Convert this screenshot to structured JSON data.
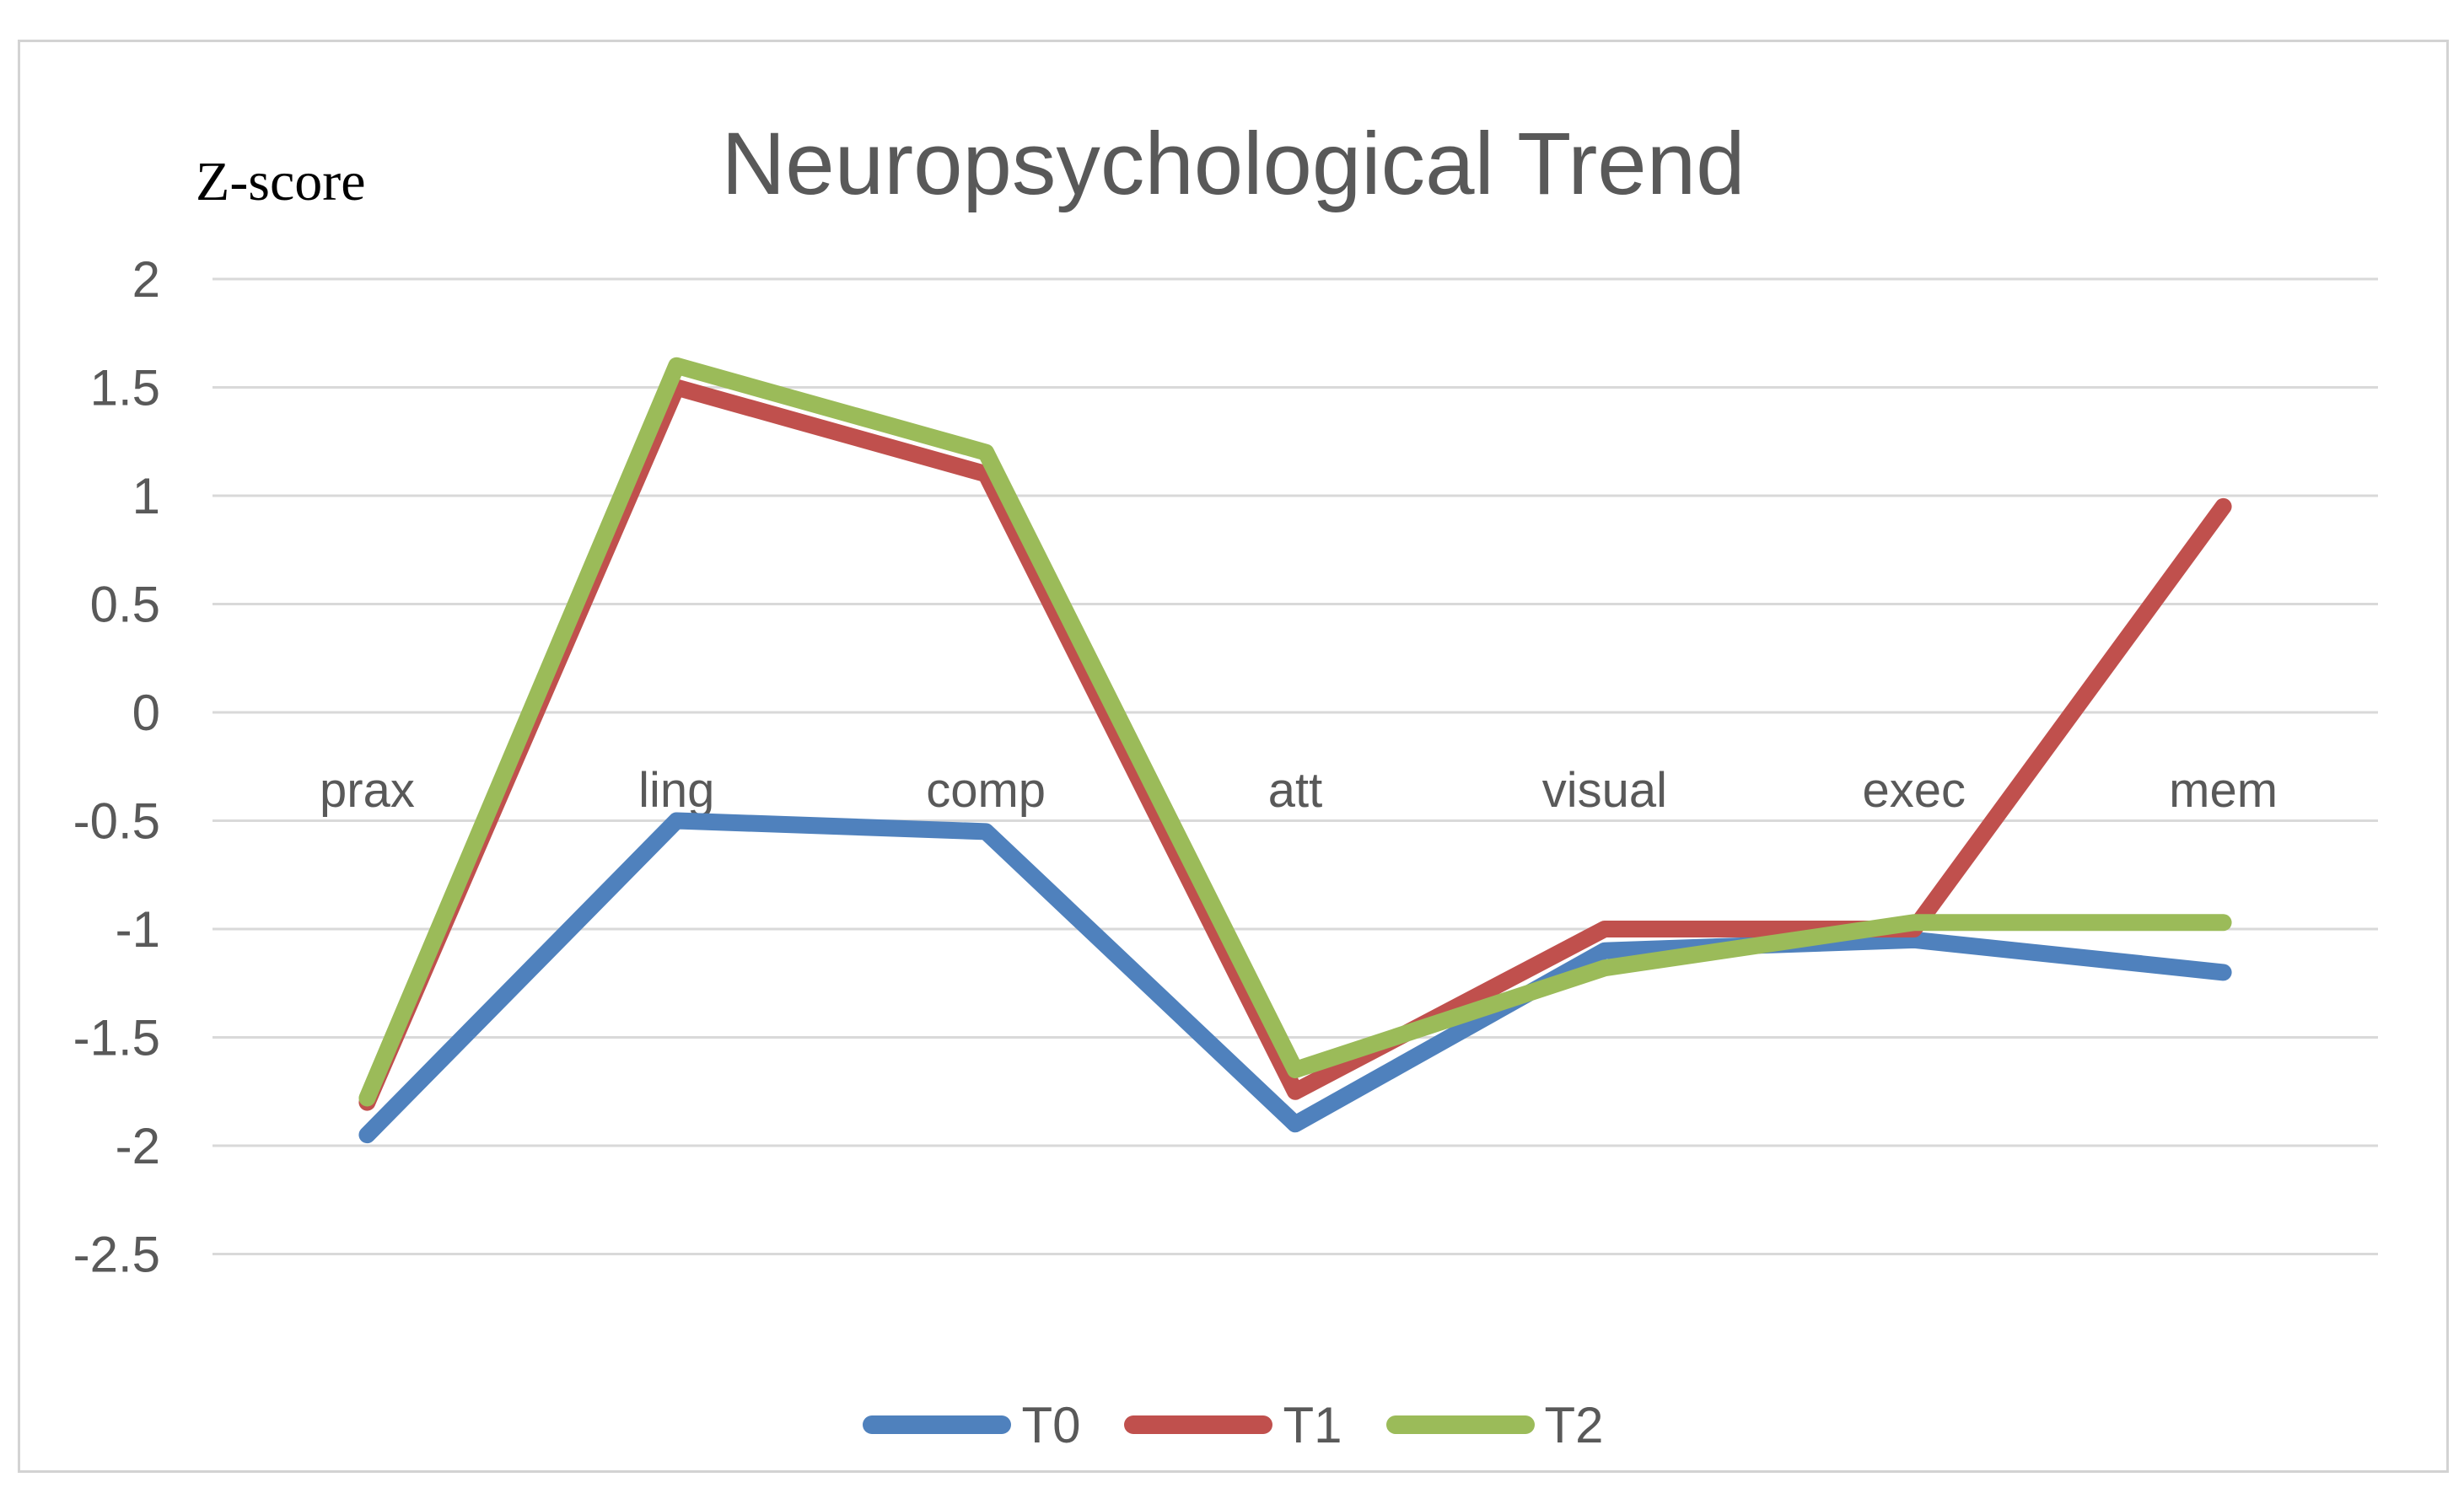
{
  "chart_data": {
    "type": "line",
    "title": "Neuropsychological Trend",
    "ylabel": "Z-score",
    "xlabel": "",
    "categories": [
      "prax",
      "ling",
      "comp",
      "att",
      "visual",
      "exec",
      "mem"
    ],
    "series": [
      {
        "name": "T0",
        "color": "#4F81BD",
        "values": [
          -1.95,
          -0.5,
          -0.55,
          -1.9,
          -1.1,
          -1.05,
          -1.2
        ]
      },
      {
        "name": "T1",
        "color": "#C0504D",
        "values": [
          -1.8,
          1.5,
          1.1,
          -1.75,
          -1.0,
          -1.0,
          0.95
        ]
      },
      {
        "name": "T2",
        "color": "#9BBB59",
        "values": [
          -1.78,
          1.6,
          1.2,
          -1.65,
          -1.18,
          -0.97,
          -0.97
        ]
      }
    ],
    "yticks": [
      2,
      1.5,
      1,
      0.5,
      0,
      -0.5,
      -1,
      -1.5,
      -2,
      -2.5
    ],
    "ylim": [
      -2.75,
      2.3
    ],
    "grid": "horizontal",
    "legend_position": "bottom-center",
    "styles": {
      "gridline_color": "#D9D9D9",
      "text_color": "#595959",
      "title_color": "#595959",
      "ylabel_color": "#000000",
      "frame_border_color": "#D3D3D3",
      "background": "#FFFFFF"
    }
  }
}
